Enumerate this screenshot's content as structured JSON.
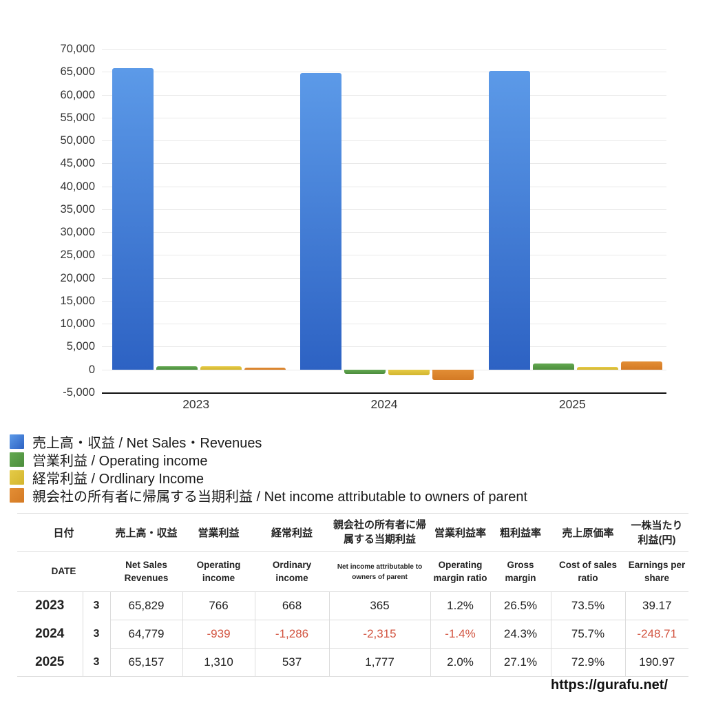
{
  "chart_data": {
    "type": "bar",
    "categories": [
      "2023",
      "2024",
      "2025"
    ],
    "series": [
      {
        "key": "net-sales-revenues",
        "name": "売上高・収益 / Net Sales・Revenues",
        "values": [
          65829,
          64779,
          65157
        ],
        "color_top": "#5C9AE8",
        "color_bottom": "#2D62C3"
      },
      {
        "key": "operating-income",
        "name": "営業利益 / Operating income",
        "values": [
          766,
          -939,
          1310
        ],
        "color_top": "#63A951",
        "color_bottom": "#4C8D3D"
      },
      {
        "key": "ordinary-income",
        "name": "経常利益 / Ordlinary Income",
        "values": [
          668,
          -1286,
          537
        ],
        "color_top": "#E5CB47",
        "color_bottom": "#D3B52E"
      },
      {
        "key": "net-income-parent",
        "name": "親会社の所有者に帰属する当期利益 / Net income attributable to owners of parent",
        "values": [
          365,
          -2315,
          1777
        ],
        "color_top": "#E38E35",
        "color_bottom": "#D47A24"
      }
    ],
    "title": "",
    "xlabel": "",
    "ylabel": "",
    "ylim": [
      -5000,
      70000
    ],
    "ytick_step": 5000,
    "grid": true,
    "legend_position": "bottom-left"
  },
  "table": {
    "header_jp": [
      "日付",
      "売上高・収益",
      "営業利益",
      "経常利益",
      "親会社の所有者に帰属する当期利益",
      "営業利益率",
      "粗利益率",
      "売上原価率",
      "一株当たり利益(円)"
    ],
    "header_en": [
      "DATE",
      "Net Sales Revenues",
      "Operating income",
      "Ordinary income",
      "Net income attributable to owners of parent",
      "Operating margin ratio",
      "Gross margin",
      "Cost of sales ratio",
      "Earnings per share"
    ],
    "rows": [
      {
        "year": "2023",
        "month": "3",
        "values": [
          "65,829",
          "766",
          "668",
          "365",
          "1.2%",
          "26.5%",
          "73.5%",
          "39.17"
        ]
      },
      {
        "year": "2024",
        "month": "3",
        "values": [
          "64,779",
          "-939",
          "-1,286",
          "-2,315",
          "-1.4%",
          "24.3%",
          "75.7%",
          "-248.71"
        ]
      },
      {
        "year": "2025",
        "month": "3",
        "values": [
          "65,157",
          "1,310",
          "537",
          "1,777",
          "2.0%",
          "27.1%",
          "72.9%",
          "190.97"
        ]
      }
    ],
    "negative_color": "#D2533F"
  },
  "footer": {
    "url": "https://gurafu.net/"
  }
}
